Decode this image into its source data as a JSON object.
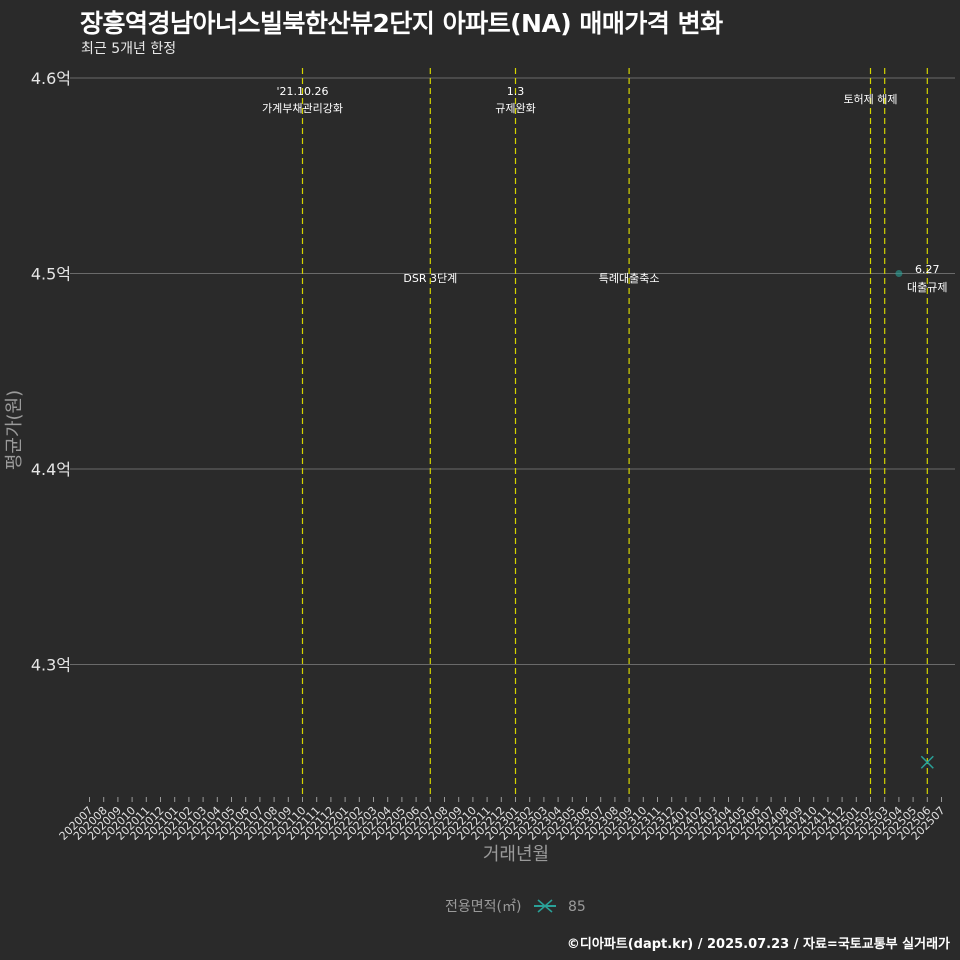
{
  "header": {
    "title": "장흥역경남아너스빌북한산뷰2단지 아파트(NA) 매매가격 변화",
    "subtitle": "최근 5개년 한정"
  },
  "caption": "©디아파트(dapt.kr) / 2025.07.23 / 자료=국토교통부 실거래가",
  "legend": {
    "title": "전용면적(㎡)",
    "items": [
      {
        "label": "85",
        "color": "#2aa198",
        "marker": "x-line"
      }
    ]
  },
  "colors": {
    "background": "#2a2a2a",
    "grid": "#6a6a6a",
    "event_line": "#d4d400",
    "series": "#2aa198"
  },
  "chart_data": {
    "type": "line",
    "title": "장흥역경남아너스빌북한산뷰2단지 아파트(NA) 매매가격 변화",
    "subtitle": "최근 5개년 한정",
    "xlabel": "거래년월",
    "ylabel": "평균가(원)",
    "ylim": [
      4.23,
      4.62
    ],
    "yticks": [
      4.3,
      4.4,
      4.5,
      4.6
    ],
    "ytick_labels": [
      "4.3억",
      "4.4억",
      "4.5억",
      "4.6억"
    ],
    "grid": true,
    "legend_position": "bottom",
    "x": [
      "202007",
      "202008",
      "202009",
      "202010",
      "202011",
      "202012",
      "202101",
      "202102",
      "202103",
      "202104",
      "202105",
      "202106",
      "202107",
      "202108",
      "202109",
      "202110",
      "202111",
      "202112",
      "202201",
      "202202",
      "202203",
      "202204",
      "202205",
      "202206",
      "202207",
      "202208",
      "202209",
      "202210",
      "202211",
      "202212",
      "202301",
      "202302",
      "202303",
      "202304",
      "202305",
      "202306",
      "202307",
      "202308",
      "202309",
      "202310",
      "202311",
      "202312",
      "202401",
      "202402",
      "202403",
      "202404",
      "202405",
      "202406",
      "202407",
      "202408",
      "202409",
      "202410",
      "202411",
      "202412",
      "202501",
      "202502",
      "202503",
      "202504",
      "202505",
      "202506",
      "202507"
    ],
    "series": [
      {
        "name": "85",
        "points": [
          {
            "x": "202506",
            "y": 4.25,
            "marker": "x"
          }
        ]
      }
    ],
    "extra_points": [
      {
        "x": "202504",
        "y": 4.5,
        "marker": "dot",
        "note": "faded point"
      }
    ],
    "events": [
      {
        "x": "202110",
        "label_top": "'21.10.26",
        "label_bottom": "가계부채관리강화",
        "y_pos": "top"
      },
      {
        "x": "202207",
        "label_top": "",
        "label_bottom": "DSR 3단계",
        "y_pos": "mid"
      },
      {
        "x": "202301",
        "label_top": "1.3",
        "label_bottom": "규제완화",
        "y_pos": "top"
      },
      {
        "x": "202309",
        "label_top": "",
        "label_bottom": "특례대출축소",
        "y_pos": "mid"
      },
      {
        "x": "202502",
        "label_top": "",
        "label_bottom": "토허제 해제",
        "y_pos": "top2"
      },
      {
        "x": "202503",
        "label_top": "",
        "label_bottom": "",
        "y_pos": "none"
      },
      {
        "x": "202506",
        "label_top": "6.27",
        "label_bottom": "대출규제",
        "y_pos": "mid"
      }
    ]
  }
}
